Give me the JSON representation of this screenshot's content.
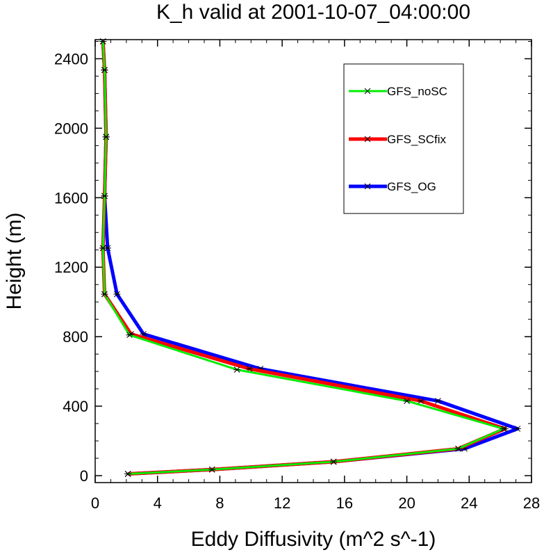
{
  "chart_data": {
    "type": "line",
    "title": "K_h valid at 2001-10-07_04:00:00",
    "xlabel": "Eddy Diffusivity (m^2 s^-1)",
    "ylabel": "Height (m)",
    "xlim": [
      0,
      28
    ],
    "ylim": [
      -40,
      2510
    ],
    "xticks": [
      0,
      4,
      8,
      12,
      16,
      20,
      24,
      28
    ],
    "yticks": [
      0,
      400,
      800,
      1200,
      1600,
      2000,
      2400
    ],
    "grid": false,
    "legend_position": "top-right",
    "series": [
      {
        "name": "GFS_noSC",
        "color": "#00ee00",
        "points": [
          [
            2.1,
            10
          ],
          [
            7.5,
            35
          ],
          [
            15.3,
            80
          ],
          [
            23.3,
            155
          ],
          [
            26.2,
            270
          ],
          [
            20.0,
            430
          ],
          [
            9.1,
            610
          ],
          [
            2.2,
            810
          ],
          [
            0.6,
            1045
          ],
          [
            0.5,
            1310
          ],
          [
            0.6,
            1610
          ],
          [
            0.7,
            1950
          ],
          [
            0.6,
            2335
          ],
          [
            0.5,
            2500
          ]
        ]
      },
      {
        "name": "GFS_SCfix",
        "color": "#ff0000",
        "points": [
          [
            2.1,
            10
          ],
          [
            7.5,
            35
          ],
          [
            15.3,
            80
          ],
          [
            23.3,
            155
          ],
          [
            26.3,
            270
          ],
          [
            20.9,
            430
          ],
          [
            9.9,
            615
          ],
          [
            2.3,
            815
          ],
          [
            0.6,
            1045
          ],
          [
            0.5,
            1310
          ],
          [
            0.6,
            1610
          ],
          [
            0.7,
            1950
          ],
          [
            0.6,
            2335
          ],
          [
            0.5,
            2500
          ]
        ]
      },
      {
        "name": "GFS_OG",
        "color": "#0000ff",
        "points": [
          [
            2.1,
            10
          ],
          [
            7.5,
            35
          ],
          [
            15.3,
            80
          ],
          [
            23.7,
            155
          ],
          [
            27.1,
            270
          ],
          [
            22.0,
            430
          ],
          [
            10.6,
            615
          ],
          [
            3.1,
            815
          ],
          [
            1.4,
            1045
          ],
          [
            0.8,
            1310
          ],
          [
            0.6,
            1610
          ],
          [
            0.7,
            1950
          ],
          [
            0.6,
            2335
          ],
          [
            0.5,
            2500
          ]
        ]
      }
    ]
  }
}
